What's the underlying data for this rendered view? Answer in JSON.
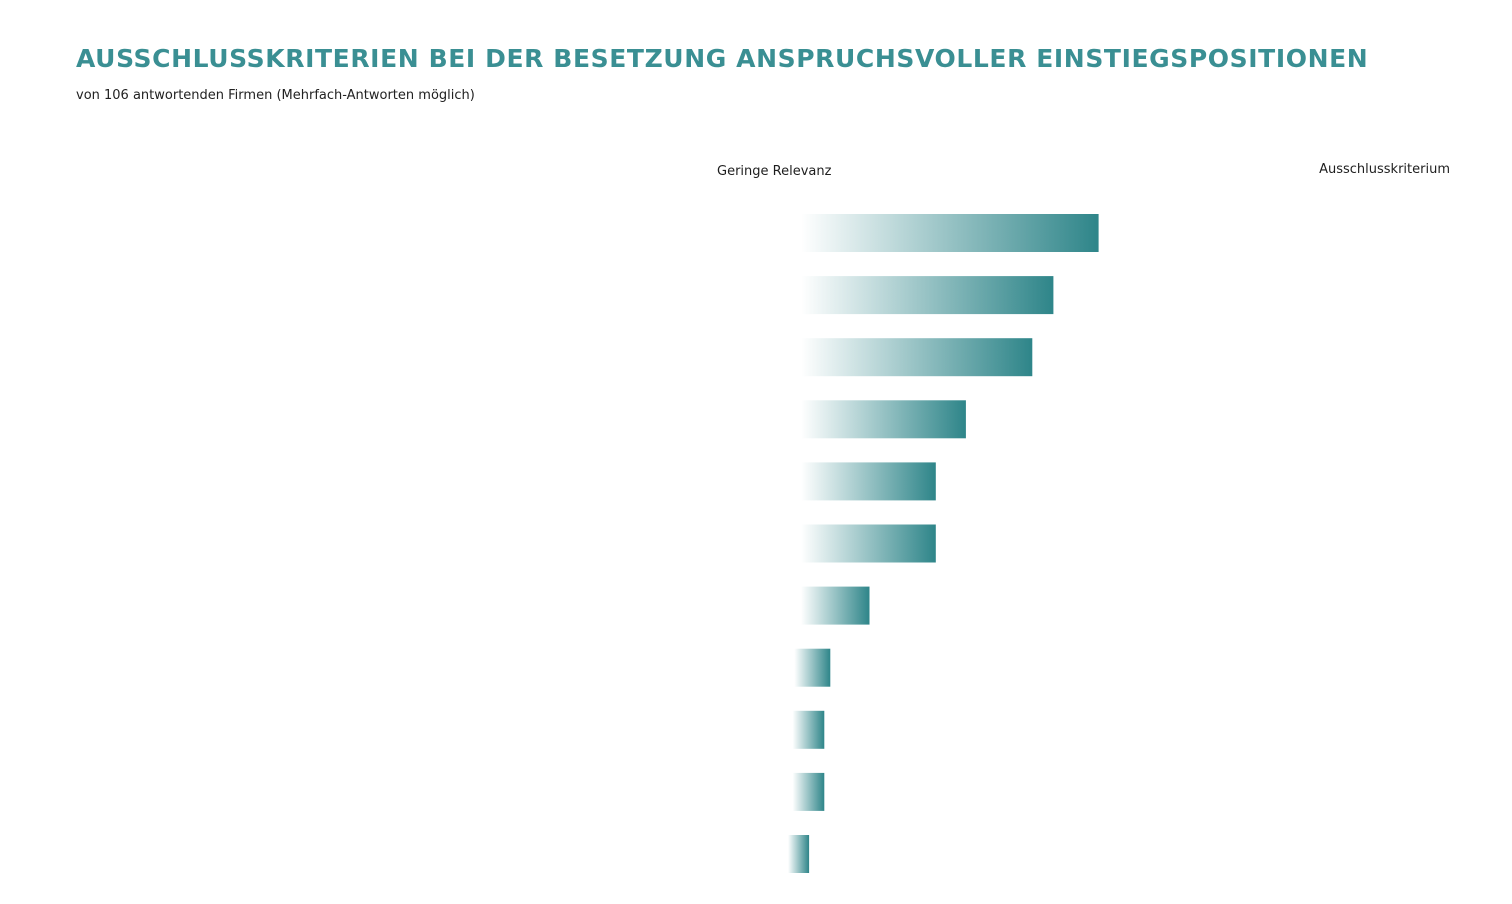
{
  "colors": {
    "accent": "#3a8f93",
    "bar": "#2e8589",
    "scale_line": "#4a3d8c"
  },
  "chart_data": {
    "type": "bar",
    "orientation": "horizontal",
    "title": "AUSSCHLUSSKRITERIEN BEI DER BESETZUNG ANSPRUCHSVOLLER EINSTIEGSPOSITIONEN",
    "subtitle": "von 106 antwortenden Firmen (Mehrfach-Antworten möglich)",
    "scale_low_label": "Geringe Relevanz",
    "scale_high_label": "Ausschlusskriterium",
    "xlim": [
      0,
      100
    ],
    "categories": [
      "",
      "",
      "",
      "",
      "",
      "",
      "",
      "",
      "",
      "",
      ""
    ],
    "values": [
      53,
      45.5,
      42,
      31,
      26,
      26,
      15,
      8.5,
      7.5,
      7.5,
      5
    ]
  }
}
